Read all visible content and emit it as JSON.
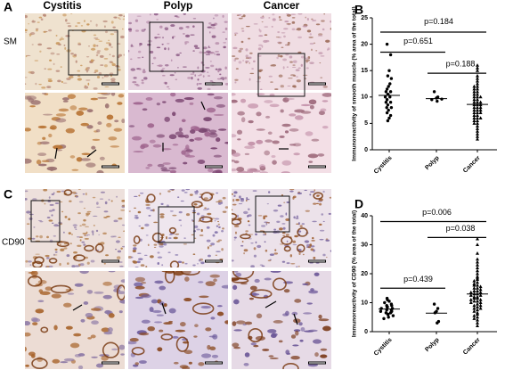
{
  "figure": {
    "panel_labels": [
      "A",
      "C"
    ],
    "column_headers": [
      "Cystitis",
      "Polyp",
      "Cancer"
    ],
    "row_labels": [
      "SM",
      "CD90"
    ]
  },
  "chart_data": [
    {
      "type": "dotplot",
      "panel": "B",
      "ylabel": "Immunoreactivity of smooth muscle (% area of the total)",
      "categories": [
        "Cystitis",
        "Polyp",
        "Cancer"
      ],
      "ylim": [
        0,
        25
      ],
      "yticks": [
        0,
        5,
        10,
        15,
        20,
        25
      ],
      "annotations": [
        "p=0.651",
        "p=0.184",
        "p=0.188"
      ],
      "groups": [
        {
          "marker": "circle",
          "mean": 10.3,
          "values": [
            20,
            18,
            15,
            14,
            13.5,
            12.5,
            12,
            11.5,
            11,
            11,
            10.5,
            10.5,
            10,
            10,
            9.5,
            9,
            9,
            8.5,
            8,
            8,
            7.5,
            7,
            6.5,
            6,
            5.5
          ]
        },
        {
          "marker": "circle",
          "mean": 9.7,
          "values": [
            11,
            10,
            9.8,
            9.5,
            9.6,
            9.2
          ]
        },
        {
          "marker": "triangle",
          "mean": 8.6,
          "values": [
            16,
            15.5,
            15,
            14,
            13.5,
            13,
            12.5,
            12,
            12,
            11.5,
            11.5,
            11,
            11,
            10.5,
            10.5,
            10,
            10,
            10,
            9.5,
            9.5,
            9,
            9,
            9,
            8.5,
            8.5,
            8.5,
            8,
            8,
            8,
            7.5,
            7.5,
            7.5,
            7,
            7,
            7,
            6.5,
            6.5,
            6,
            6,
            6,
            5.5,
            5.5,
            5,
            5,
            4.5,
            4,
            3.5,
            3,
            2.5,
            2
          ]
        }
      ]
    },
    {
      "type": "dotplot",
      "panel": "D",
      "ylabel": "Immunoreactivity of CD90 (% area of the total)",
      "categories": [
        "Cystitis",
        "Polyp",
        "Cancer"
      ],
      "ylim": [
        0,
        40
      ],
      "yticks": [
        0,
        10,
        20,
        30,
        40
      ],
      "annotations": [
        "p=0.439",
        "p=0.006",
        "p=0.038"
      ],
      "groups": [
        {
          "marker": "circle",
          "mean": 7.8,
          "values": [
            11.5,
            11,
            10.5,
            10,
            9.5,
            9,
            9,
            8.5,
            8.5,
            8,
            8,
            7.5,
            7.5,
            7,
            7,
            6.5,
            6.5,
            6,
            6,
            5.5,
            5,
            4.5
          ]
        },
        {
          "marker": "circle",
          "mean": 6.4,
          "values": [
            9.5,
            8,
            7,
            6.5,
            3.5,
            3
          ]
        },
        {
          "marker": "triangle",
          "mean": 13,
          "values": [
            32,
            30,
            27,
            25,
            24,
            23,
            22,
            21,
            20,
            19,
            18.5,
            18,
            17.5,
            17,
            16.5,
            16,
            16,
            15.5,
            15,
            15,
            14.5,
            14,
            14,
            13.5,
            13.5,
            13,
            13,
            12.5,
            12.5,
            12,
            12,
            11.5,
            11.5,
            11,
            11,
            10.5,
            10.5,
            10,
            10,
            9.5,
            9,
            9,
            8.5,
            8,
            8,
            7.5,
            7,
            6.5,
            6,
            5.5,
            5,
            4.5,
            4,
            3,
            2
          ]
        }
      ]
    }
  ]
}
